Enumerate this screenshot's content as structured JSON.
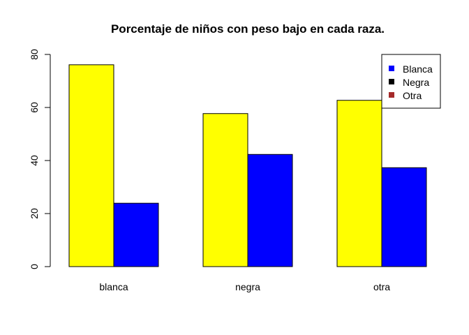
{
  "chart_data": {
    "type": "bar",
    "title": "Porcentaje de niños con peso bajo en cada raza.",
    "xlabel": "",
    "ylabel": "",
    "categories": [
      "blanca",
      "negra",
      "otra"
    ],
    "series": [
      {
        "values": [
          76.1,
          57.7,
          62.7
        ],
        "color": "#ffff00"
      },
      {
        "values": [
          23.9,
          42.3,
          37.3
        ],
        "color": "#0000ff"
      }
    ],
    "ylim": [
      0,
      80
    ],
    "yticks": [
      "0",
      "20",
      "40",
      "60",
      "80"
    ],
    "grid": false,
    "legend": {
      "position": "top-right",
      "entries": [
        {
          "label": "Blanca",
          "color": "#0000ff"
        },
        {
          "label": "Negra",
          "color": "#000000"
        },
        {
          "label": "Otra",
          "color": "#a52a2a"
        }
      ]
    }
  }
}
